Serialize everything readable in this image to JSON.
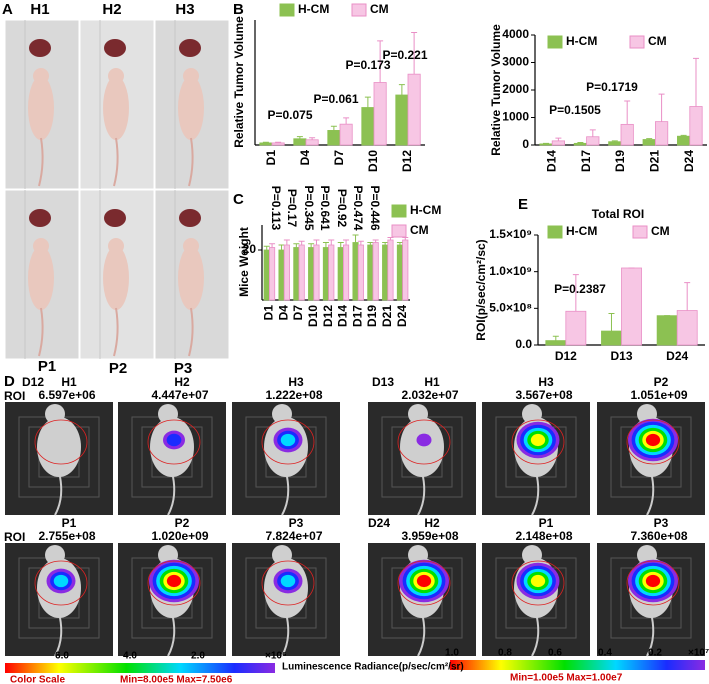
{
  "panel_labels": [
    "A",
    "B",
    "C",
    "D",
    "E"
  ],
  "panel_a": {
    "columns": [
      "H1",
      "H2",
      "H3"
    ]
  },
  "chart_data": [
    {
      "type": "bar",
      "ylabel": "Relative Tumor Volume",
      "categories": [
        "D1",
        "D4",
        "D7",
        "D10",
        "D12"
      ],
      "series": [
        {
          "name": "H-CM",
          "color": "#8cc152",
          "values": [
            1,
            3,
            7,
            18,
            24
          ],
          "errors": [
            0.3,
            1,
            2,
            5,
            5
          ]
        },
        {
          "name": "CM",
          "color": "#f7c6e4",
          "values": [
            1,
            2.5,
            10,
            30,
            34
          ],
          "errors": [
            0.3,
            1,
            3,
            20,
            20
          ]
        }
      ],
      "ylim": [
        0,
        60
      ],
      "annotations": [
        "P=0.075",
        "P=0.061",
        "P=0.173",
        "P=0.221"
      ]
    },
    {
      "type": "bar",
      "ylabel": "Relative Tumor Volume",
      "categories": [
        "D14",
        "D17",
        "D19",
        "D21",
        "D24"
      ],
      "series": [
        {
          "name": "H-CM",
          "color": "#8cc152",
          "values": [
            40,
            60,
            120,
            200,
            320
          ],
          "errors": [
            20,
            30,
            30,
            30,
            30
          ]
        },
        {
          "name": "CM",
          "color": "#f7c6e4",
          "values": [
            150,
            300,
            750,
            850,
            1400
          ],
          "errors": [
            100,
            250,
            850,
            1000,
            1750
          ]
        }
      ],
      "ylim": [
        0,
        4000
      ],
      "yticks": [
        0,
        1000,
        2000,
        3000,
        4000
      ],
      "annotations": [
        "P=0.1505",
        "P=0.1719"
      ]
    },
    {
      "type": "bar",
      "ylabel": "Mice Weight",
      "categories": [
        "D1",
        "D4",
        "D7",
        "D10",
        "D12",
        "D14",
        "D17",
        "D19",
        "D21",
        "D24"
      ],
      "series": [
        {
          "name": "H-CM",
          "color": "#8cc152",
          "values": [
            20,
            20,
            21,
            21,
            21,
            21,
            23,
            22,
            22,
            22
          ],
          "errors": [
            1.5,
            2,
            1.5,
            1.5,
            2,
            2,
            3,
            1,
            1,
            1
          ]
        },
        {
          "name": "CM",
          "color": "#f7c6e4",
          "values": [
            21,
            22,
            22,
            22,
            22,
            22,
            22,
            23,
            24,
            24
          ],
          "errors": [
            1.5,
            2,
            1.5,
            2,
            2,
            2,
            1.5,
            1,
            1,
            1
          ]
        }
      ],
      "ylim": [
        0,
        30
      ],
      "yticks": [
        20
      ],
      "annotations": [
        "P=0.113",
        "P=0.17",
        "P=0.345",
        "P=0.641",
        "P=0.92",
        "P=0.474",
        "P=0.446"
      ]
    },
    {
      "type": "bar",
      "title": "Total ROI",
      "ylabel": "ROI(p/sec/cm²/sc)",
      "categories": [
        "D12",
        "D13",
        "D24"
      ],
      "series": [
        {
          "name": "H-CM",
          "color": "#8cc152",
          "values": [
            60000000,
            190000000,
            400000000
          ],
          "errors": [
            60000000,
            240000000,
            0
          ]
        },
        {
          "name": "CM",
          "color": "#f7c6e4",
          "values": [
            460000000,
            1050000000,
            470000000
          ],
          "errors": [
            500000000,
            0,
            380000000
          ]
        }
      ],
      "ylim": [
        0,
        1500000000
      ],
      "yticks": [
        {
          "value": 0,
          "label": "0.0"
        },
        {
          "value": 500000000,
          "label": "5.0×10⁸"
        },
        {
          "value": 1000000000,
          "label": "1.0×10⁹"
        },
        {
          "value": 1500000000,
          "label": "1.5×10⁹"
        }
      ],
      "annotations": [
        "P=0.2387"
      ]
    }
  ],
  "panel_d": {
    "headers": [
      "P1",
      "P2",
      "P3"
    ],
    "roi_label": "ROI",
    "groups": [
      {
        "day": "D12",
        "mice": [
          {
            "name": "H1",
            "roi": "6.597e+06"
          },
          {
            "name": "H2",
            "roi": "4.447e+07"
          },
          {
            "name": "H3",
            "roi": "1.222e+08"
          }
        ]
      },
      {
        "mice": [
          {
            "name": "P1",
            "roi": "2.755e+08"
          },
          {
            "name": "P2",
            "roi": "1.020e+09"
          },
          {
            "name": "P3",
            "roi": "7.824e+07"
          }
        ]
      },
      {
        "day": "D13",
        "mice": [
          {
            "name": "H1",
            "roi": "2.032e+07"
          },
          {
            "name": "H3",
            "roi": "3.567e+08"
          },
          {
            "name": "P2",
            "roi": "1.051e+09"
          }
        ]
      },
      {
        "day": "D24",
        "mice": [
          {
            "name": "H2",
            "roi": "3.959e+08"
          },
          {
            "name": "P1",
            "roi": "2.148e+08"
          },
          {
            "name": "P3",
            "roi": "7.360e+08"
          }
        ]
      }
    ],
    "unit": "Luminescence Radiance(p/sec/cm²/sr)",
    "scales": [
      {
        "ticks": [
          "6.0",
          "4.0",
          "2.0"
        ],
        "exponent": "×10⁶",
        "title": "Color Scale",
        "range": "Min=8.00e5 Max=7.50e6"
      },
      {
        "ticks": [
          "1.0",
          "0.8",
          "0.6",
          "0.4",
          "0.2"
        ],
        "exponent": "×10⁷",
        "range": "Min=1.00e5 Max=1.00e7"
      }
    ]
  }
}
